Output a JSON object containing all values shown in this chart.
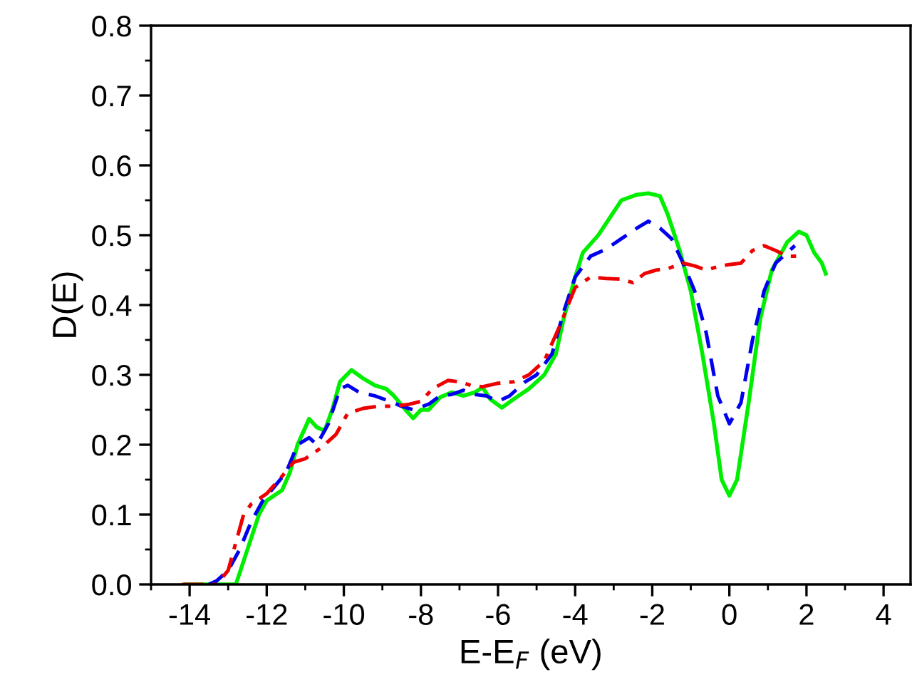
{
  "chart_data": {
    "type": "line",
    "xlabel": "E-E$_{F}$ (eV)",
    "ylabel": "D(E)",
    "xlim": [
      -15,
      4.7
    ],
    "ylim": [
      0,
      0.8
    ],
    "xticks": [
      -14,
      -12,
      -10,
      -8,
      -6,
      -4,
      -2,
      0,
      2,
      4
    ],
    "yticks": [
      {
        "value": 0,
        "label": "0.0"
      },
      0.1,
      0.2,
      0.3,
      0.4,
      0.5,
      0.6,
      0.7,
      0.8
    ],
    "grid": false,
    "legend": false,
    "marker": "none",
    "series": [
      {
        "color": "#00ee00",
        "line_style": "solid",
        "x": [
          -14.1,
          -13,
          -12.8,
          -12.5,
          -12.2,
          -12,
          -11.6,
          -11.4,
          -11.2,
          -10.9,
          -10.7,
          -10.5,
          -10.3,
          -10.1,
          -9.8,
          -9.5,
          -9.2,
          -8.9,
          -8.7,
          -8.4,
          -8.2,
          -8.0,
          -7.8,
          -7.5,
          -7.2,
          -6.9,
          -6.6,
          -6.4,
          -6.2,
          -5.9,
          -5.6,
          -5.2,
          -4.8,
          -4.5,
          -4.3,
          -4.0,
          -3.8,
          -3.4,
          -3.1,
          -2.8,
          -2.4,
          -2.1,
          -1.8,
          -1.6,
          -1.3,
          -1.0,
          -0.7,
          -0.4,
          -0.2,
          0,
          0.2,
          0.5,
          0.8,
          1.1,
          1.5,
          1.8,
          2.0,
          2.2,
          2.4,
          2.5
        ],
        "values": [
          0,
          0,
          0,
          0.05,
          0.1,
          0.12,
          0.135,
          0.16,
          0.2,
          0.237,
          0.225,
          0.22,
          0.25,
          0.29,
          0.307,
          0.295,
          0.285,
          0.28,
          0.27,
          0.25,
          0.238,
          0.25,
          0.25,
          0.268,
          0.275,
          0.27,
          0.275,
          0.282,
          0.265,
          0.253,
          0.265,
          0.28,
          0.3,
          0.33,
          0.38,
          0.44,
          0.475,
          0.5,
          0.525,
          0.55,
          0.558,
          0.56,
          0.556,
          0.53,
          0.48,
          0.42,
          0.33,
          0.23,
          0.15,
          0.127,
          0.15,
          0.26,
          0.38,
          0.45,
          0.49,
          0.505,
          0.5,
          0.475,
          0.46,
          0.445
        ]
      },
      {
        "color": "#0000ee",
        "line_style": "dashed",
        "x": [
          -13.5,
          -13.3,
          -13,
          -12.7,
          -12.4,
          -12.1,
          -11.8,
          -11.5,
          -11.2,
          -10.9,
          -10.7,
          -10.4,
          -10.1,
          -9.9,
          -9.6,
          -9.2,
          -8.8,
          -8.5,
          -8.2,
          -7.8,
          -7.5,
          -7.2,
          -6.9,
          -6.6,
          -6.3,
          -6.0,
          -5.7,
          -5.3,
          -5,
          -4.6,
          -4.3,
          -4,
          -3.6,
          -3.2,
          -2.8,
          -2.4,
          -2.1,
          -1.8,
          -1.5,
          -1.2,
          -0.9,
          -0.6,
          -0.3,
          0,
          0.3,
          0.6,
          0.9,
          1.2,
          1.6,
          1.7
        ],
        "values": [
          0,
          0.005,
          0.02,
          0.05,
          0.09,
          0.12,
          0.14,
          0.16,
          0.2,
          0.21,
          0.2,
          0.23,
          0.28,
          0.285,
          0.275,
          0.27,
          0.262,
          0.255,
          0.25,
          0.258,
          0.27,
          0.272,
          0.278,
          0.272,
          0.27,
          0.262,
          0.27,
          0.29,
          0.3,
          0.33,
          0.39,
          0.44,
          0.47,
          0.48,
          0.495,
          0.51,
          0.52,
          0.51,
          0.495,
          0.46,
          0.42,
          0.36,
          0.27,
          0.23,
          0.26,
          0.35,
          0.42,
          0.46,
          0.48,
          0.485
        ]
      },
      {
        "color": "#ee0000",
        "line_style": "dashdot",
        "x": [
          -14.2,
          -13.3,
          -13.0,
          -12.8,
          -12.6,
          -12.4,
          -12.0,
          -11.6,
          -11.3,
          -11,
          -10.6,
          -10.2,
          -9.9,
          -9.5,
          -9.1,
          -8.7,
          -8.3,
          -8.0,
          -7.7,
          -7.3,
          -7.0,
          -6.7,
          -6.4,
          -6.0,
          -5.6,
          -5.2,
          -4.8,
          -4.4,
          -4.0,
          -3.6,
          -3.2,
          -2.8,
          -2.5,
          -2.2,
          -1.9,
          -1.6,
          -1.2,
          -0.9,
          -0.6,
          -0.3,
          0,
          0.3,
          0.6,
          0.9,
          1.2,
          1.5,
          1.8
        ],
        "values": [
          0,
          0,
          0.02,
          0.06,
          0.1,
          0.115,
          0.13,
          0.155,
          0.175,
          0.18,
          0.195,
          0.215,
          0.245,
          0.252,
          0.255,
          0.255,
          0.258,
          0.262,
          0.28,
          0.292,
          0.29,
          0.285,
          0.283,
          0.288,
          0.29,
          0.3,
          0.32,
          0.37,
          0.425,
          0.44,
          0.438,
          0.437,
          0.432,
          0.445,
          0.45,
          0.452,
          0.46,
          0.456,
          0.45,
          0.455,
          0.458,
          0.46,
          0.478,
          0.485,
          0.478,
          0.47,
          0.47
        ]
      }
    ]
  }
}
